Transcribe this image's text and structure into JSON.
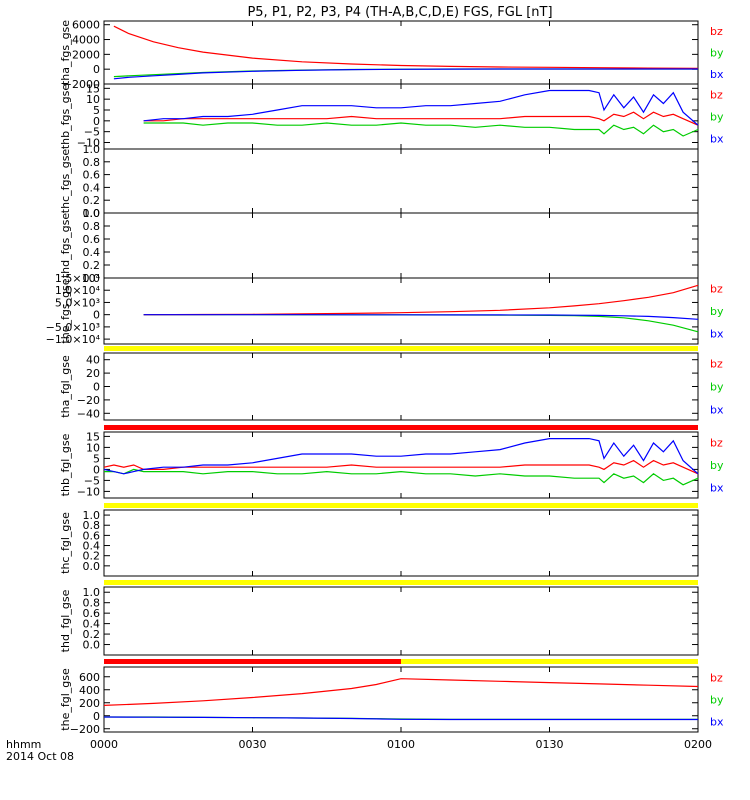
{
  "title": "P5, P1, P2, P3, P4 (TH-A,B,C,D,E) FGS, FGL [nT]",
  "xaxis": {
    "corner_label_1": "hhmm",
    "corner_label_2": "2014 Oct 08",
    "range_min": [
      0,
      120
    ],
    "ticks": [
      {
        "min": 0,
        "label": "0000"
      },
      {
        "min": 30,
        "label": "0030"
      },
      {
        "min": 60,
        "label": "0100"
      },
      {
        "min": 90,
        "label": "0130"
      },
      {
        "min": 120,
        "label": "0200"
      }
    ]
  },
  "colors": {
    "bx": "#0000ff",
    "by": "#00cc00",
    "bz": "#ff0000",
    "bar_yellow": "#ffff00",
    "bar_red": "#ff0000"
  },
  "chart_data": [
    {
      "type": "line",
      "ylabel": "tha_fgs_gse",
      "ylim": [
        -2000,
        6500
      ],
      "yticks": [
        {
          "v": 6000,
          "t": "6000"
        },
        {
          "v": 4000,
          "t": "4000"
        },
        {
          "v": 2000,
          "t": "2000"
        },
        {
          "v": 0,
          "t": "0"
        },
        {
          "v": -2000,
          "t": "−2000"
        }
      ],
      "legend": [
        "bz",
        "by",
        "bx"
      ],
      "x": [
        2,
        5,
        10,
        15,
        20,
        30,
        40,
        50,
        60,
        70,
        80,
        90,
        100,
        110,
        120
      ],
      "series": [
        {
          "name": "bz",
          "values": [
            5800,
            4800,
            3700,
            2900,
            2300,
            1500,
            1000,
            700,
            500,
            380,
            300,
            250,
            200,
            150,
            100
          ]
        },
        {
          "name": "by",
          "values": [
            -1000,
            -900,
            -750,
            -600,
            -450,
            -250,
            -120,
            -40,
            0,
            20,
            30,
            30,
            30,
            30,
            30
          ]
        },
        {
          "name": "bx",
          "values": [
            -1300,
            -1100,
            -900,
            -700,
            -500,
            -280,
            -150,
            -60,
            -10,
            10,
            20,
            30,
            30,
            30,
            30
          ]
        }
      ]
    },
    {
      "type": "line",
      "ylabel": "thb_fgs_gse",
      "ylim": [
        -13,
        17
      ],
      "yticks": [
        {
          "v": 15,
          "t": "15"
        },
        {
          "v": 10,
          "t": "10"
        },
        {
          "v": 5,
          "t": "5"
        },
        {
          "v": 0,
          "t": "0"
        },
        {
          "v": -5,
          "t": "−5"
        },
        {
          "v": -10,
          "t": "−10"
        }
      ],
      "legend": [
        "bz",
        "by",
        "bx"
      ],
      "x": [
        8,
        12,
        16,
        20,
        25,
        30,
        35,
        40,
        45,
        50,
        55,
        60,
        65,
        70,
        75,
        80,
        85,
        90,
        95,
        98,
        100,
        101,
        103,
        105,
        107,
        109,
        111,
        113,
        115,
        117,
        120
      ],
      "series": [
        {
          "name": "bx",
          "values": [
            0,
            1,
            1,
            2,
            2,
            3,
            5,
            7,
            7,
            7,
            6,
            6,
            7,
            7,
            8,
            9,
            12,
            14,
            14,
            14,
            13,
            5,
            12,
            6,
            11,
            4,
            12,
            8,
            13,
            4,
            -2
          ]
        },
        {
          "name": "by",
          "values": [
            -1,
            -1,
            -1,
            -2,
            -1,
            -1,
            -2,
            -2,
            -1,
            -2,
            -2,
            -1,
            -2,
            -2,
            -3,
            -2,
            -3,
            -3,
            -4,
            -4,
            -4,
            -6,
            -2,
            -4,
            -3,
            -6,
            -2,
            -5,
            -4,
            -7,
            -4
          ]
        },
        {
          "name": "bz",
          "values": [
            0,
            0,
            1,
            1,
            1,
            1,
            1,
            1,
            1,
            2,
            1,
            1,
            1,
            1,
            1,
            1,
            2,
            2,
            2,
            2,
            1,
            0,
            3,
            2,
            4,
            1,
            4,
            2,
            3,
            1,
            -2
          ]
        }
      ]
    },
    {
      "type": "line",
      "ylabel": "thc_fgs_gse",
      "ylim": [
        0,
        1
      ],
      "yticks": [
        {
          "v": 1,
          "t": "1.0"
        },
        {
          "v": 0.8,
          "t": "0.8"
        },
        {
          "v": 0.6,
          "t": "0.6"
        },
        {
          "v": 0.4,
          "t": "0.4"
        },
        {
          "v": 0.2,
          "t": "0.2"
        },
        {
          "v": 0,
          "t": "0.0"
        }
      ],
      "legend": [],
      "x": [],
      "series": []
    },
    {
      "type": "line",
      "ylabel": "thd_fgs_gse",
      "ylim": [
        0,
        1
      ],
      "yticks": [
        {
          "v": 1,
          "t": "1.0"
        },
        {
          "v": 0.8,
          "t": "0.8"
        },
        {
          "v": 0.6,
          "t": "0.6"
        },
        {
          "v": 0.4,
          "t": "0.4"
        },
        {
          "v": 0.2,
          "t": "0.2"
        },
        {
          "v": 0,
          "t": "0.0"
        }
      ],
      "legend": [],
      "x": [],
      "series": []
    },
    {
      "type": "line",
      "ylabel": "the_fgs_gse",
      "ylim": [
        -12000,
        15000
      ],
      "yticks": [
        {
          "v": 10000,
          "t": "1.0×10⁴"
        },
        {
          "v": 5000,
          "t": "5.0×10³"
        },
        {
          "v": 0,
          "t": "0"
        },
        {
          "v": -5000,
          "t": "−5.0×10³"
        },
        {
          "v": -10000,
          "t": "−1.0×10⁴"
        }
      ],
      "yticks_extra": [
        {
          "v": 15000,
          "t": "1.5×10⁴"
        }
      ],
      "legend": [
        "bz",
        "by",
        "bx"
      ],
      "x": [
        8,
        20,
        30,
        40,
        50,
        60,
        70,
        80,
        90,
        95,
        100,
        105,
        110,
        115,
        120
      ],
      "series": [
        {
          "name": "bz",
          "values": [
            0,
            50,
            150,
            300,
            500,
            800,
            1200,
            1800,
            2800,
            3600,
            4500,
            5700,
            7100,
            9000,
            12000
          ]
        },
        {
          "name": "by",
          "values": [
            0,
            -10,
            -20,
            -40,
            -60,
            -80,
            -120,
            -180,
            -280,
            -400,
            -700,
            -1300,
            -2500,
            -4300,
            -7000
          ]
        },
        {
          "name": "bx",
          "values": [
            0,
            -10,
            -20,
            -30,
            -40,
            -60,
            -80,
            -110,
            -150,
            -200,
            -300,
            -450,
            -700,
            -1200,
            -1900
          ]
        }
      ]
    },
    {
      "type": "line",
      "ylabel": "tha_fgl_gse",
      "ylim": [
        -50,
        50
      ],
      "yticks": [
        {
          "v": 40,
          "t": "40"
        },
        {
          "v": 20,
          "t": "20"
        },
        {
          "v": 0,
          "t": "0"
        },
        {
          "v": -20,
          "t": "−20"
        },
        {
          "v": -40,
          "t": "−40"
        }
      ],
      "legend": [
        "bz",
        "by",
        "bx"
      ],
      "x": [],
      "series": []
    },
    {
      "type": "line",
      "ylabel": "thb_fgl_gse",
      "ylim": [
        -13,
        17
      ],
      "yticks": [
        {
          "v": 15,
          "t": "15"
        },
        {
          "v": 10,
          "t": "10"
        },
        {
          "v": 5,
          "t": "5"
        },
        {
          "v": 0,
          "t": "0"
        },
        {
          "v": -5,
          "t": "−5"
        },
        {
          "v": -10,
          "t": "−10"
        }
      ],
      "legend": [
        "bz",
        "by",
        "bx"
      ],
      "x": [
        0,
        2,
        4,
        6,
        8,
        12,
        16,
        20,
        25,
        30,
        35,
        40,
        45,
        50,
        55,
        60,
        65,
        70,
        75,
        80,
        85,
        90,
        95,
        98,
        100,
        101,
        103,
        105,
        107,
        109,
        111,
        113,
        115,
        117,
        120
      ],
      "series": [
        {
          "name": "bx",
          "values": [
            0,
            -1,
            -2,
            -1,
            0,
            1,
            1,
            2,
            2,
            3,
            5,
            7,
            7,
            7,
            6,
            6,
            7,
            7,
            8,
            9,
            12,
            14,
            14,
            14,
            13,
            5,
            12,
            6,
            11,
            4,
            12,
            8,
            13,
            4,
            -2
          ]
        },
        {
          "name": "by",
          "values": [
            -1,
            -1,
            -2,
            0,
            -1,
            -1,
            -1,
            -2,
            -1,
            -1,
            -2,
            -2,
            -1,
            -2,
            -2,
            -1,
            -2,
            -2,
            -3,
            -2,
            -3,
            -3,
            -4,
            -4,
            -4,
            -6,
            -2,
            -4,
            -3,
            -6,
            -2,
            -5,
            -4,
            -7,
            -4
          ]
        },
        {
          "name": "bz",
          "values": [
            1,
            2,
            1,
            2,
            0,
            0,
            1,
            1,
            1,
            1,
            1,
            1,
            1,
            2,
            1,
            1,
            1,
            1,
            1,
            1,
            2,
            2,
            2,
            2,
            1,
            0,
            3,
            2,
            4,
            1,
            4,
            2,
            3,
            1,
            -2
          ]
        }
      ]
    },
    {
      "type": "line",
      "ylabel": "thc_fgl_gse",
      "ylim": [
        -0.2,
        1.1
      ],
      "yticks": [
        {
          "v": 1,
          "t": "1.0"
        },
        {
          "v": 0.8,
          "t": "0.8"
        },
        {
          "v": 0.6,
          "t": "0.6"
        },
        {
          "v": 0.4,
          "t": "0.4"
        },
        {
          "v": 0.2,
          "t": "0.2"
        },
        {
          "v": 0,
          "t": "0.0"
        }
      ],
      "legend": [],
      "x": [],
      "series": []
    },
    {
      "type": "line",
      "ylabel": "thd_fgl_gse",
      "ylim": [
        -0.2,
        1.1
      ],
      "yticks": [
        {
          "v": 1,
          "t": "1.0"
        },
        {
          "v": 0.8,
          "t": "0.8"
        },
        {
          "v": 0.6,
          "t": "0.6"
        },
        {
          "v": 0.4,
          "t": "0.4"
        },
        {
          "v": 0.2,
          "t": "0.2"
        },
        {
          "v": 0,
          "t": "0.0"
        }
      ],
      "legend": [],
      "x": [],
      "series": []
    },
    {
      "type": "line",
      "ylabel": "the_fgl_gse",
      "ylim": [
        -250,
        750
      ],
      "yticks": [
        {
          "v": 600,
          "t": "600"
        },
        {
          "v": 400,
          "t": "400"
        },
        {
          "v": 200,
          "t": "200"
        },
        {
          "v": 0,
          "t": "0"
        },
        {
          "v": -200,
          "t": "−200"
        }
      ],
      "legend": [
        "bz",
        "by",
        "bx"
      ],
      "x": [
        0,
        10,
        20,
        30,
        40,
        50,
        55,
        60,
        70,
        80,
        90,
        100,
        110,
        120
      ],
      "series": [
        {
          "name": "bz",
          "values": [
            160,
            190,
            230,
            280,
            340,
            420,
            480,
            570,
            550,
            530,
            510,
            490,
            470,
            450
          ]
        },
        {
          "name": "by",
          "values": [
            -20,
            -20,
            -25,
            -30,
            -35,
            -40,
            -45,
            -50,
            -55,
            -55,
            -55,
            -55,
            -55,
            -55
          ]
        },
        {
          "name": "bx",
          "values": [
            -20,
            -22,
            -25,
            -30,
            -35,
            -42,
            -48,
            -55,
            -58,
            -58,
            -58,
            -58,
            -58,
            -58
          ]
        }
      ]
    }
  ],
  "quality_bars": [
    {
      "segments": [
        {
          "from": 0,
          "to": 120,
          "color": "bar_yellow"
        }
      ]
    },
    {
      "segments": [
        {
          "from": 0,
          "to": 120,
          "color": "bar_red"
        }
      ]
    },
    {
      "segments": [
        {
          "from": 0,
          "to": 120,
          "color": "bar_yellow"
        }
      ]
    },
    {
      "segments": [
        {
          "from": 0,
          "to": 120,
          "color": "bar_yellow"
        }
      ]
    },
    {
      "segments": [
        {
          "from": 0,
          "to": 60,
          "color": "bar_red"
        },
        {
          "from": 60,
          "to": 120,
          "color": "bar_yellow"
        }
      ]
    }
  ]
}
